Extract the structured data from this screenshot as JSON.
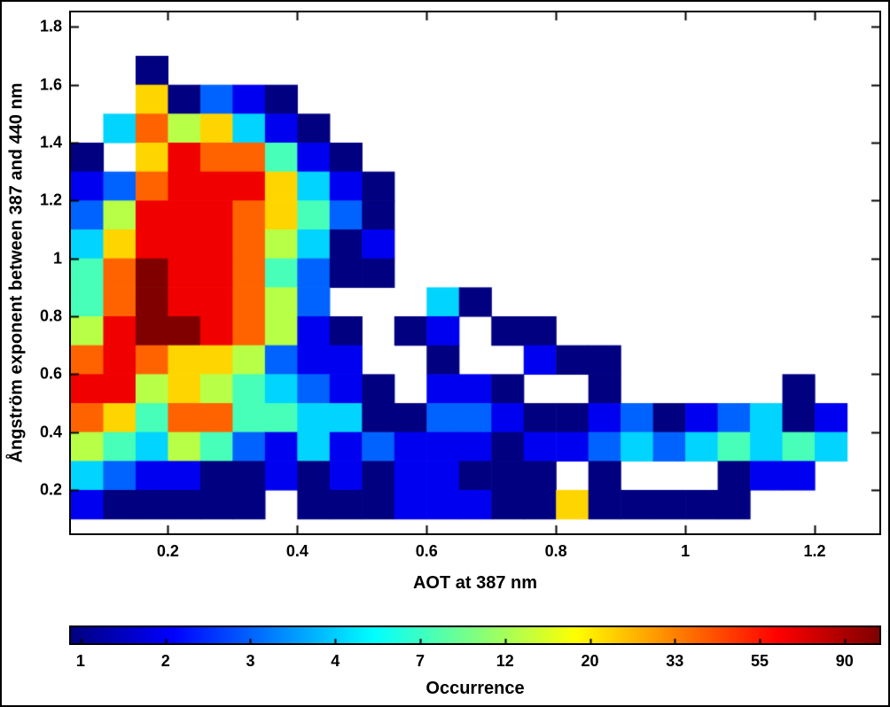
{
  "figure": {
    "background": "#ffffff",
    "border_color": "#000000",
    "axes_color": "#000000"
  },
  "chart_data": {
    "type": "heatmap",
    "title": "",
    "xlabel": "AOT at 387 nm",
    "ylabel": "Ångström exponent between 387 and 440 nm",
    "xlim": [
      0.05,
      1.3
    ],
    "ylim": [
      0.05,
      1.85
    ],
    "grid_lines": "off",
    "xticks": [
      {
        "v": 0.2,
        "label": "0.2"
      },
      {
        "v": 0.4,
        "label": "0.4"
      },
      {
        "v": 0.6,
        "label": "0.6"
      },
      {
        "v": 0.8,
        "label": "0.8"
      },
      {
        "v": 1.0,
        "label": "1"
      },
      {
        "v": 1.2,
        "label": "1.2"
      }
    ],
    "yticks": [
      {
        "v": 0.2,
        "label": "0.2"
      },
      {
        "v": 0.4,
        "label": "0.4"
      },
      {
        "v": 0.6,
        "label": "0.6"
      },
      {
        "v": 0.8,
        "label": "0.8"
      },
      {
        "v": 1.0,
        "label": "1"
      },
      {
        "v": 1.2,
        "label": "1.2"
      },
      {
        "v": 1.4,
        "label": "1.4"
      },
      {
        "v": 1.6,
        "label": "1.6"
      },
      {
        "v": 1.8,
        "label": "1.8"
      }
    ],
    "colorbar": {
      "label": "Occurrence",
      "ticks": [
        1,
        2,
        3,
        4,
        7,
        12,
        20,
        33,
        55,
        90
      ],
      "scale": "log",
      "colormap": "jet",
      "min_color": "#000080",
      "max_color": "#800000",
      "position": "bottom"
    },
    "grid": {
      "comment": "occurrence counts; 0 = empty bin; rows top-to-bottom",
      "x_start": 0.05,
      "y_start": 1.7,
      "cell_width": 0.05,
      "cell_height": 0.1,
      "columns": 24,
      "rows": 16,
      "values": [
        [
          0,
          0,
          1,
          0,
          0,
          0,
          0,
          0,
          0,
          0,
          0,
          0,
          0,
          0,
          0,
          0,
          0,
          0,
          0,
          0,
          0,
          0,
          0,
          0
        ],
        [
          0,
          0,
          20,
          1,
          3,
          2,
          1,
          0,
          0,
          0,
          0,
          0,
          0,
          0,
          0,
          0,
          0,
          0,
          0,
          0,
          0,
          0,
          0,
          0
        ],
        [
          0,
          4,
          33,
          12,
          20,
          4,
          2,
          1,
          0,
          0,
          0,
          0,
          0,
          0,
          0,
          0,
          0,
          0,
          0,
          0,
          0,
          0,
          0,
          0
        ],
        [
          1,
          0,
          20,
          55,
          33,
          33,
          7,
          2,
          1,
          0,
          0,
          0,
          0,
          0,
          0,
          0,
          0,
          0,
          0,
          0,
          0,
          0,
          0,
          0
        ],
        [
          2,
          3,
          33,
          55,
          55,
          55,
          20,
          4,
          2,
          1,
          0,
          0,
          0,
          0,
          0,
          0,
          0,
          0,
          0,
          0,
          0,
          0,
          0,
          0
        ],
        [
          3,
          12,
          55,
          55,
          55,
          33,
          20,
          7,
          3,
          1,
          0,
          0,
          0,
          0,
          0,
          0,
          0,
          0,
          0,
          0,
          0,
          0,
          0,
          0
        ],
        [
          4,
          20,
          55,
          55,
          55,
          33,
          12,
          4,
          1,
          2,
          0,
          0,
          0,
          0,
          0,
          0,
          0,
          0,
          0,
          0,
          0,
          0,
          0,
          0
        ],
        [
          7,
          33,
          90,
          55,
          55,
          33,
          7,
          3,
          1,
          1,
          0,
          0,
          0,
          0,
          0,
          0,
          0,
          0,
          0,
          0,
          0,
          0,
          0,
          0
        ],
        [
          7,
          33,
          90,
          55,
          55,
          33,
          12,
          3,
          0,
          0,
          0,
          4,
          1,
          0,
          0,
          0,
          0,
          0,
          0,
          0,
          0,
          0,
          0,
          0
        ],
        [
          12,
          55,
          90,
          90,
          55,
          33,
          12,
          2,
          1,
          0,
          1,
          2,
          0,
          1,
          1,
          0,
          0,
          0,
          0,
          0,
          0,
          0,
          0,
          0
        ],
        [
          33,
          55,
          33,
          20,
          20,
          12,
          3,
          2,
          2,
          0,
          0,
          1,
          0,
          0,
          2,
          1,
          1,
          0,
          0,
          0,
          0,
          0,
          0,
          0
        ],
        [
          55,
          55,
          12,
          20,
          12,
          7,
          4,
          3,
          2,
          1,
          0,
          2,
          2,
          1,
          0,
          0,
          1,
          0,
          0,
          0,
          0,
          0,
          1,
          0
        ],
        [
          33,
          20,
          7,
          33,
          33,
          7,
          7,
          4,
          4,
          1,
          1,
          3,
          3,
          2,
          1,
          1,
          2,
          3,
          1,
          2,
          3,
          4,
          1,
          2
        ],
        [
          12,
          7,
          4,
          12,
          7,
          3,
          2,
          4,
          2,
          3,
          2,
          2,
          2,
          1,
          2,
          2,
          3,
          4,
          3,
          4,
          7,
          4,
          7,
          4
        ],
        [
          4,
          3,
          2,
          2,
          1,
          1,
          2,
          1,
          2,
          1,
          2,
          2,
          1,
          1,
          1,
          0,
          1,
          0,
          0,
          0,
          1,
          2,
          2,
          0
        ],
        [
          2,
          1,
          1,
          1,
          1,
          1,
          0,
          1,
          1,
          1,
          2,
          2,
          2,
          1,
          1,
          20,
          1,
          1,
          1,
          1,
          1,
          0,
          0,
          0
        ]
      ]
    }
  }
}
